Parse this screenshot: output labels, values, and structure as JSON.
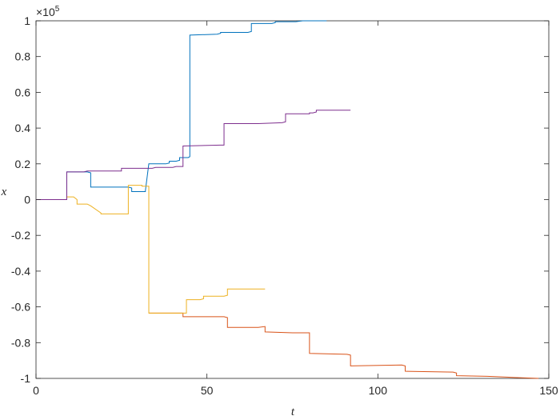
{
  "chart_data": {
    "type": "line",
    "xlabel": "t",
    "ylabel": "x",
    "xlim": [
      0,
      150
    ],
    "ylim": [
      -100000,
      100000
    ],
    "xticks": [
      0,
      50,
      100,
      150
    ],
    "yticks": [
      -1,
      -0.8,
      -0.6,
      -0.4,
      -0.2,
      0,
      0.2,
      0.4,
      0.6,
      0.8,
      1
    ],
    "ytick_labels": [
      "-1",
      "-0.8",
      "-0.6",
      "-0.4",
      "-0.2",
      "0",
      "0.2",
      "0.4",
      "0.6",
      "0.8",
      "1"
    ],
    "xtick_labels": [
      "0",
      "50",
      "100",
      "150"
    ],
    "y_multiplier": {
      "base": "×10",
      "exponent": "5"
    },
    "grid": false,
    "series": [
      {
        "color": "#0072BD",
        "x": [
          0,
          9,
          9,
          15,
          16,
          16,
          27,
          28,
          28,
          32,
          32,
          33,
          38,
          39,
          39,
          41,
          42,
          42,
          44.5,
          45,
          45,
          53,
          54,
          54,
          62,
          63,
          63,
          69,
          70,
          70,
          76,
          78,
          85
        ],
        "y": [
          0,
          0,
          15500,
          15500,
          15000,
          7000,
          7000,
          6500,
          4500,
          4500,
          5000,
          20000,
          20000,
          20500,
          21500,
          21500,
          22000,
          23500,
          23500,
          24000,
          92000,
          92500,
          93000,
          93500,
          93500,
          94000,
          98500,
          98500,
          99000,
          99500,
          99500,
          100000,
          100000
        ]
      },
      {
        "color": "#D95319",
        "x": [
          33,
          43,
          43,
          55,
          56,
          56,
          65,
          67,
          67,
          75,
          80,
          80,
          91,
          92,
          92,
          107,
          108,
          108,
          122,
          123,
          123,
          132,
          140,
          147
        ],
        "y": [
          -63500,
          -63500,
          -65500,
          -65500,
          -66000,
          -71500,
          -71500,
          -71000,
          -74000,
          -74500,
          -74500,
          -86000,
          -86500,
          -87000,
          -93000,
          -92500,
          -93000,
          -96000,
          -96500,
          -97000,
          -98500,
          -98800,
          -99500,
          -100000
        ]
      },
      {
        "color": "#EDB120",
        "x": [
          0,
          9,
          9,
          11,
          12,
          12,
          15,
          16,
          16,
          19,
          19,
          27,
          27,
          31,
          31,
          33,
          33,
          44,
          44,
          48,
          49,
          49,
          55,
          56,
          56,
          67
        ],
        "y": [
          0,
          0,
          1500,
          1500,
          0,
          -2500,
          -2500,
          -3500,
          -3500,
          -7500,
          -8000,
          -8000,
          8000,
          8000,
          7500,
          7500,
          -63500,
          -63500,
          -56000,
          -56000,
          -55500,
          -54000,
          -54000,
          -53500,
          -50000,
          -50000
        ]
      },
      {
        "color": "#7E2F8E",
        "x": [
          0,
          9,
          9,
          14,
          15,
          15,
          25,
          25,
          34,
          35,
          35,
          40,
          41,
          41,
          43,
          43,
          54,
          55,
          55,
          65,
          65,
          72,
          73,
          73,
          80,
          80,
          81,
          82,
          82,
          92
        ],
        "y": [
          0,
          0,
          15500,
          15500,
          16000,
          16000,
          16000,
          17500,
          17500,
          18000,
          18000,
          18000,
          18500,
          18500,
          18500,
          30000,
          30500,
          30500,
          42500,
          42500,
          42500,
          43000,
          43500,
          48000,
          48000,
          48500,
          48500,
          49000,
          50000,
          50000
        ]
      }
    ]
  }
}
